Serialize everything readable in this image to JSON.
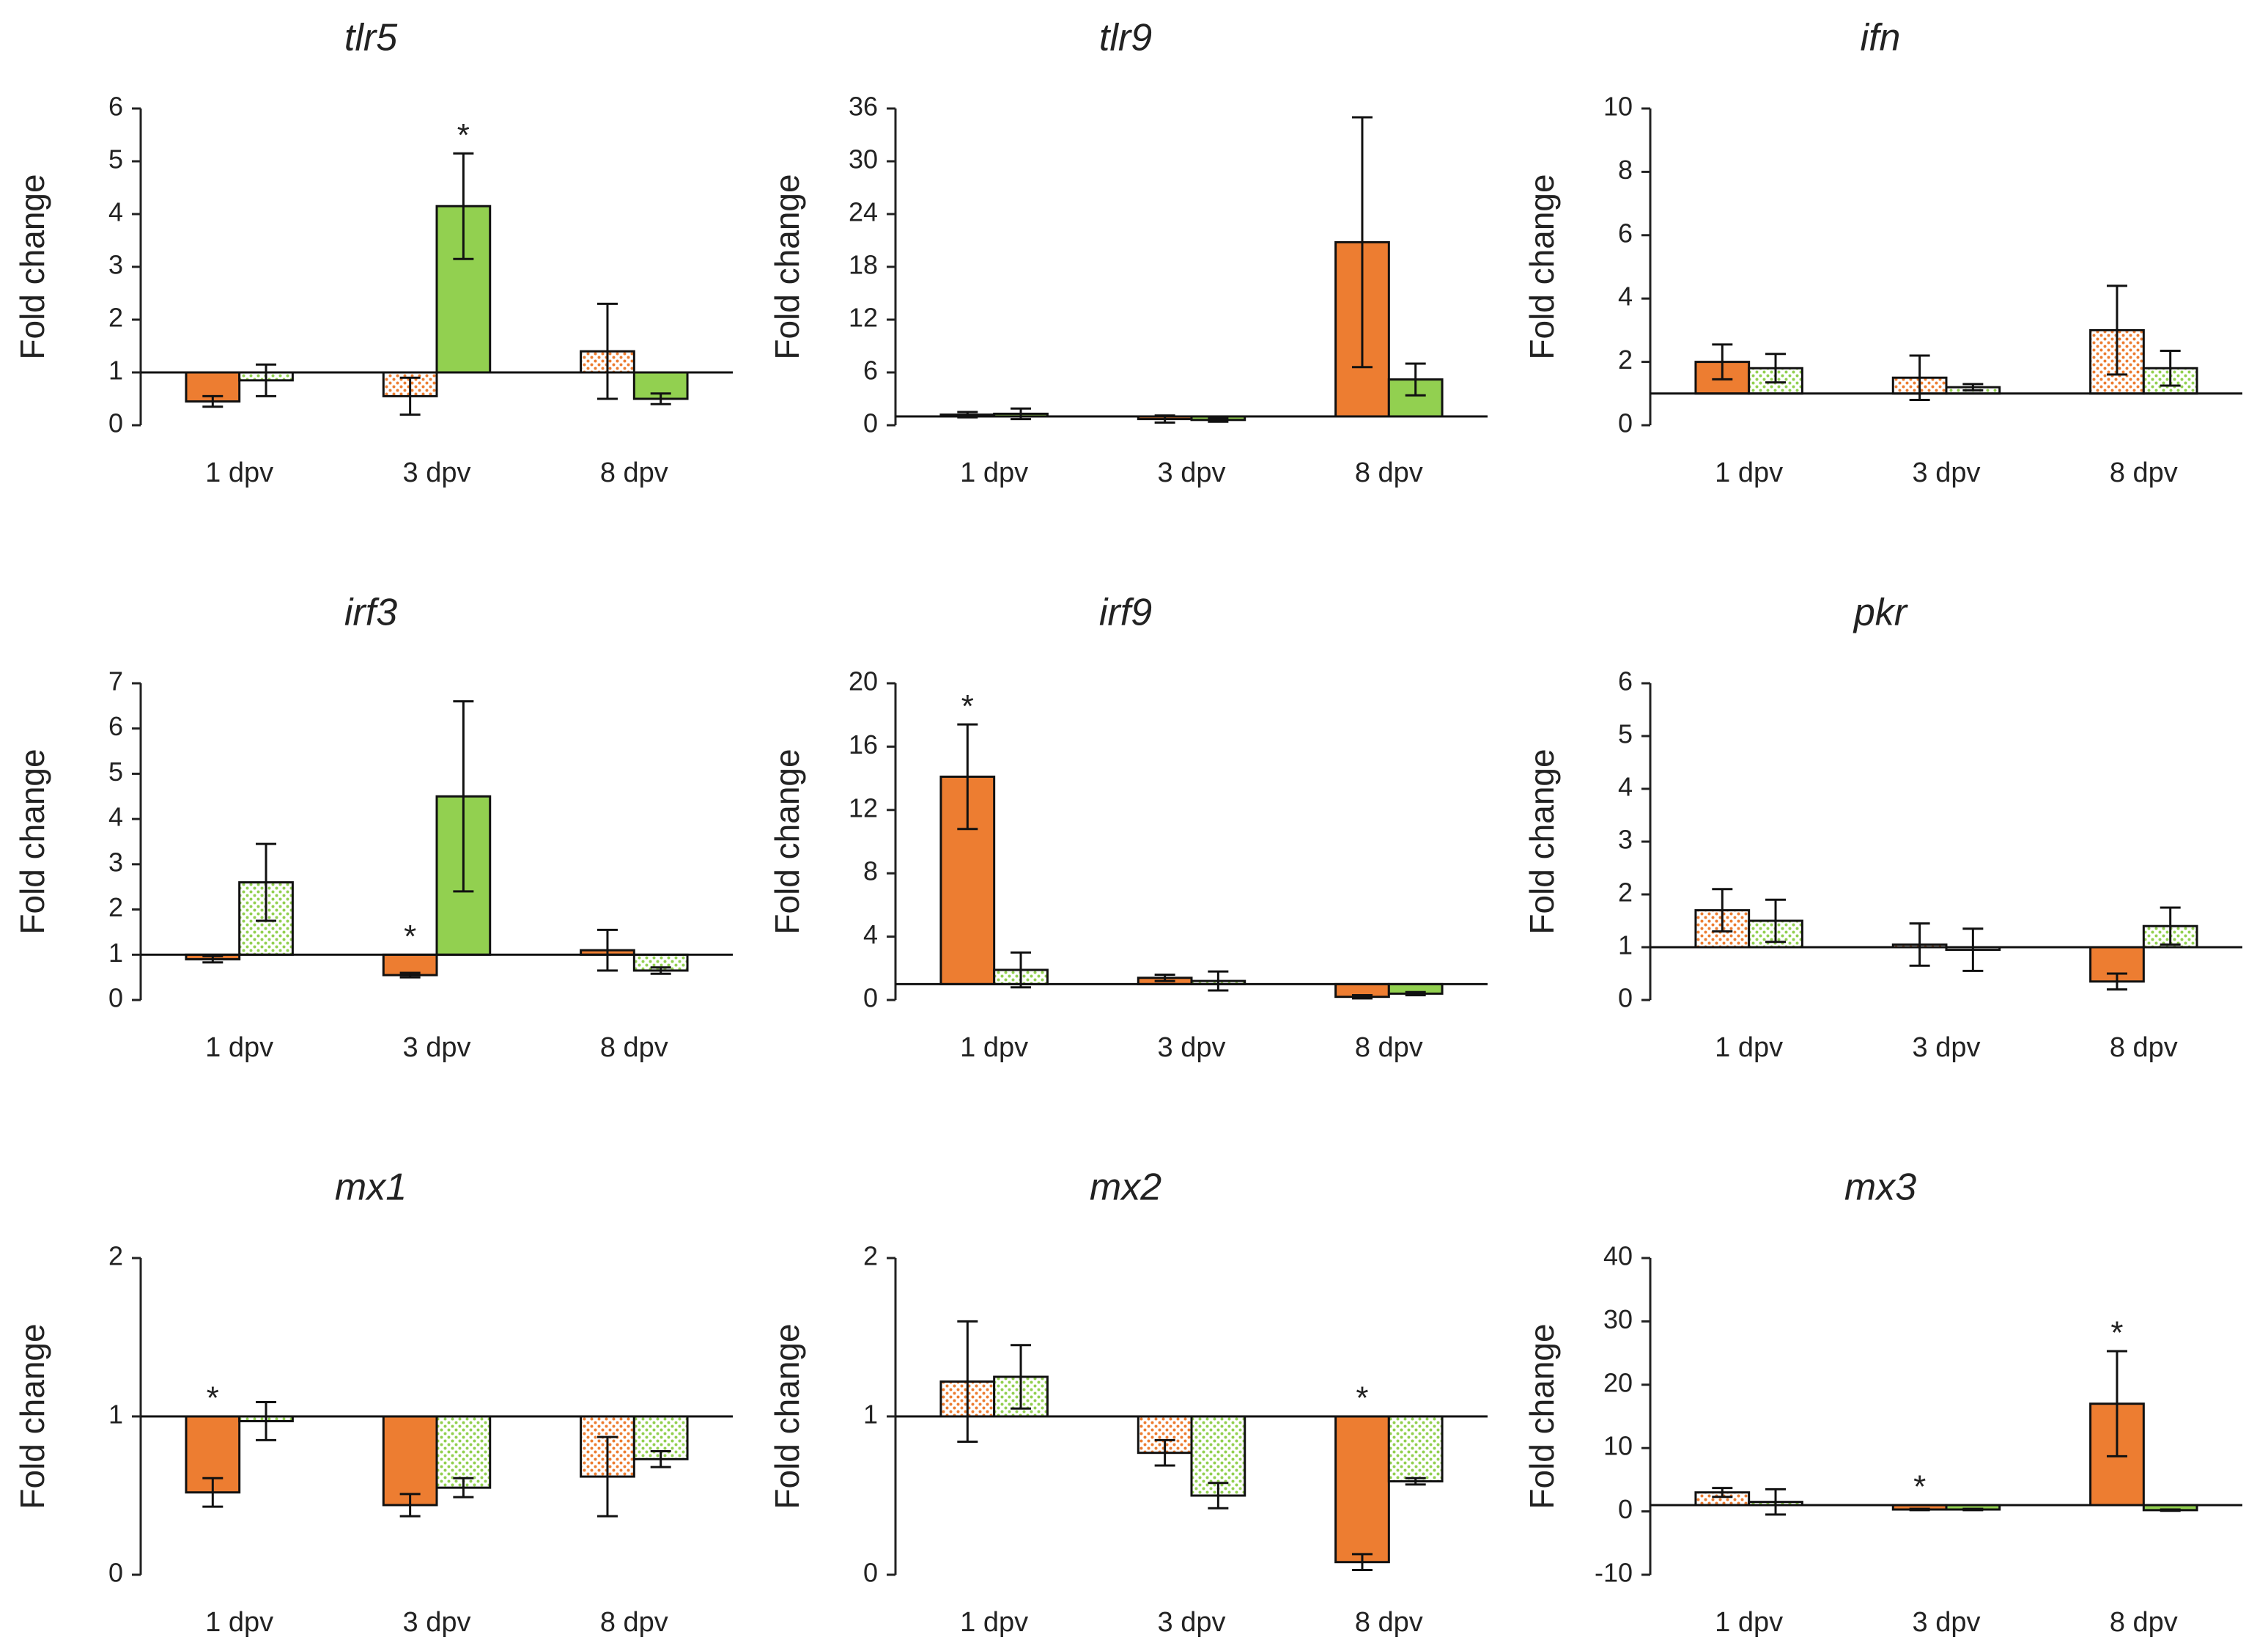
{
  "chart_data": [
    {
      "type": "bar",
      "title": "tlr5",
      "y_label": "Fold change",
      "categories": [
        "1 dpv",
        "3 dpv",
        "8 dpv"
      ],
      "ylim": [
        0,
        6
      ],
      "yticks": [
        0,
        1,
        2,
        3,
        4,
        5,
        6
      ],
      "baseline": 1,
      "significance_label": "*",
      "series": [
        {
          "color": "#ed7d31",
          "values": [
            0.45,
            0.55,
            1.4
          ],
          "errors": [
            0.1,
            0.35,
            0.9
          ],
          "patterns": [
            "solid",
            "dotted",
            "dotted"
          ],
          "significant": [
            false,
            false,
            false
          ]
        },
        {
          "color": "#92d050",
          "values": [
            0.85,
            4.15,
            0.5
          ],
          "errors": [
            0.3,
            1.0,
            0.1
          ],
          "patterns": [
            "dotted",
            "solid",
            "solid"
          ],
          "significant": [
            false,
            true,
            false
          ]
        }
      ]
    },
    {
      "type": "bar",
      "title": "tlr9",
      "y_label": "Fold change",
      "categories": [
        "1 dpv",
        "3 dpv",
        "8 dpv"
      ],
      "ylim": [
        0,
        36
      ],
      "yticks": [
        0,
        6,
        12,
        18,
        24,
        30,
        36
      ],
      "baseline": 1,
      "significance_label": "*",
      "series": [
        {
          "color": "#ed7d31",
          "values": [
            1.2,
            0.7,
            20.8
          ],
          "errors": [
            0.3,
            0.4,
            14.2
          ],
          "patterns": [
            "solid",
            "solid",
            "solid"
          ],
          "significant": [
            false,
            false,
            false
          ]
        },
        {
          "color": "#92d050",
          "values": [
            1.3,
            0.6,
            5.2
          ],
          "errors": [
            0.6,
            0.2,
            1.8
          ],
          "patterns": [
            "solid",
            "solid",
            "solid"
          ],
          "significant": [
            false,
            false,
            false
          ]
        }
      ]
    },
    {
      "type": "bar",
      "title": "ifn",
      "y_label": "Fold change",
      "categories": [
        "1 dpv",
        "3 dpv",
        "8 dpv"
      ],
      "ylim": [
        0,
        10
      ],
      "yticks": [
        0,
        2,
        4,
        6,
        8,
        10
      ],
      "baseline": 1,
      "significance_label": "*",
      "series": [
        {
          "color": "#ed7d31",
          "values": [
            2.0,
            1.5,
            3.0
          ],
          "errors": [
            0.55,
            0.7,
            1.4
          ],
          "patterns": [
            "solid",
            "dotted",
            "dotted"
          ],
          "significant": [
            false,
            false,
            false
          ]
        },
        {
          "color": "#92d050",
          "values": [
            1.8,
            1.2,
            1.8
          ],
          "errors": [
            0.45,
            0.1,
            0.55
          ],
          "patterns": [
            "dotted",
            "dotted",
            "dotted"
          ],
          "significant": [
            false,
            false,
            false
          ]
        }
      ]
    },
    {
      "type": "bar",
      "title": "irf3",
      "y_label": "Fold change",
      "categories": [
        "1 dpv",
        "3 dpv",
        "8 dpv"
      ],
      "ylim": [
        0,
        7
      ],
      "yticks": [
        0,
        1,
        2,
        3,
        4,
        5,
        6,
        7
      ],
      "baseline": 1,
      "significance_label": "*",
      "series": [
        {
          "color": "#ed7d31",
          "values": [
            0.9,
            0.55,
            1.1
          ],
          "errors": [
            0.07,
            0.05,
            0.45
          ],
          "patterns": [
            "solid",
            "solid",
            "solid"
          ],
          "significant": [
            false,
            true,
            false
          ]
        },
        {
          "color": "#92d050",
          "values": [
            2.6,
            4.5,
            0.65
          ],
          "errors": [
            0.85,
            2.1,
            0.07
          ],
          "patterns": [
            "dotted",
            "solid",
            "dotted"
          ],
          "significant": [
            false,
            false,
            false
          ]
        }
      ]
    },
    {
      "type": "bar",
      "title": "irf9",
      "y_label": "Fold change",
      "categories": [
        "1 dpv",
        "3 dpv",
        "8 dpv"
      ],
      "ylim": [
        0,
        20
      ],
      "yticks": [
        0,
        4,
        8,
        12,
        16,
        20
      ],
      "baseline": 1,
      "significance_label": "*",
      "series": [
        {
          "color": "#ed7d31",
          "values": [
            14.1,
            1.4,
            0.2
          ],
          "errors": [
            3.3,
            0.2,
            0.1
          ],
          "patterns": [
            "solid",
            "solid",
            "solid"
          ],
          "significant": [
            true,
            false,
            false
          ]
        },
        {
          "color": "#92d050",
          "values": [
            1.9,
            1.2,
            0.4
          ],
          "errors": [
            1.1,
            0.6,
            0.1
          ],
          "patterns": [
            "dotted",
            "dotted",
            "solid"
          ],
          "significant": [
            false,
            false,
            false
          ]
        }
      ]
    },
    {
      "type": "bar",
      "title": "pkr",
      "y_label": "Fold change",
      "categories": [
        "1 dpv",
        "3 dpv",
        "8 dpv"
      ],
      "ylim": [
        0,
        6
      ],
      "yticks": [
        0,
        1,
        2,
        3,
        4,
        5,
        6
      ],
      "baseline": 1,
      "significance_label": "*",
      "series": [
        {
          "color": "#ed7d31",
          "values": [
            1.7,
            1.05,
            0.35
          ],
          "errors": [
            0.4,
            0.4,
            0.15
          ],
          "patterns": [
            "dotted",
            "dotted",
            "solid"
          ],
          "significant": [
            false,
            false,
            false
          ]
        },
        {
          "color": "#92d050",
          "values": [
            1.5,
            0.95,
            1.4
          ],
          "errors": [
            0.4,
            0.4,
            0.35
          ],
          "patterns": [
            "dotted",
            "dotted",
            "dotted"
          ],
          "significant": [
            false,
            false,
            false
          ]
        }
      ]
    },
    {
      "type": "bar",
      "title": "mx1",
      "y_label": "Fold change",
      "categories": [
        "1 dpv",
        "3 dpv",
        "8 dpv"
      ],
      "ylim": [
        0,
        2
      ],
      "yticks": [
        0,
        1,
        2
      ],
      "baseline": 1,
      "significance_label": "*",
      "series": [
        {
          "color": "#ed7d31",
          "values": [
            0.52,
            0.44,
            0.62
          ],
          "errors": [
            0.09,
            0.07,
            0.25
          ],
          "patterns": [
            "solid",
            "solid",
            "dotted"
          ],
          "significant": [
            true,
            false,
            false
          ]
        },
        {
          "color": "#92d050",
          "values": [
            0.97,
            0.55,
            0.73
          ],
          "errors": [
            0.12,
            0.06,
            0.05
          ],
          "patterns": [
            "dotted",
            "dotted",
            "dotted"
          ],
          "significant": [
            false,
            false,
            false
          ]
        }
      ]
    },
    {
      "type": "bar",
      "title": "mx2",
      "y_label": "Fold change",
      "categories": [
        "1 dpv",
        "3 dpv",
        "8 dpv"
      ],
      "ylim": [
        0,
        2
      ],
      "yticks": [
        0,
        1,
        2
      ],
      "baseline": 1,
      "significance_label": "*",
      "series": [
        {
          "color": "#ed7d31",
          "values": [
            1.22,
            0.77,
            0.08
          ],
          "errors": [
            0.38,
            0.08,
            0.05
          ],
          "patterns": [
            "dotted",
            "dotted",
            "solid"
          ],
          "significant": [
            false,
            false,
            true
          ]
        },
        {
          "color": "#92d050",
          "values": [
            1.25,
            0.5,
            0.59
          ],
          "errors": [
            0.2,
            0.08,
            0.02
          ],
          "patterns": [
            "dotted",
            "dotted",
            "dotted"
          ],
          "significant": [
            false,
            false,
            false
          ]
        }
      ]
    },
    {
      "type": "bar",
      "title": "mx3",
      "y_label": "Fold change",
      "categories": [
        "1 dpv",
        "3 dpv",
        "8 dpv"
      ],
      "ylim": [
        -10,
        40
      ],
      "yticks": [
        -10,
        0,
        10,
        20,
        30,
        40
      ],
      "baseline": 1,
      "significance_label": "*",
      "series": [
        {
          "color": "#ed7d31",
          "values": [
            3.0,
            0.3,
            17
          ],
          "errors": [
            0.7,
            0.1,
            8.3
          ],
          "patterns": [
            "dotted",
            "solid",
            "solid"
          ],
          "significant": [
            false,
            true,
            true
          ]
        },
        {
          "color": "#92d050",
          "values": [
            1.5,
            0.3,
            0.2
          ],
          "errors": [
            2.0,
            0.1,
            0.1
          ],
          "patterns": [
            "dotted",
            "solid",
            "solid"
          ],
          "significant": [
            false,
            false,
            false
          ]
        }
      ]
    }
  ]
}
